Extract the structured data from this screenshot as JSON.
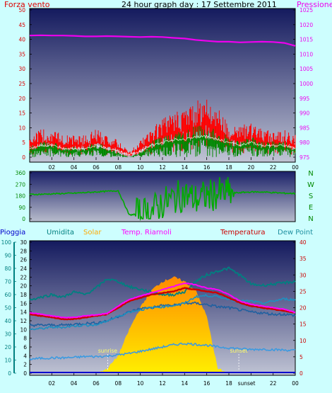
{
  "header": {
    "left": "Forza vento",
    "center": "24 hour graph day : 17 Settembre 2011",
    "right": "Pressione"
  },
  "colors": {
    "wind": "#ff0000",
    "gust": "#008800",
    "pressure": "#ee00ee",
    "direction": "#00aa00",
    "rain": "#007777",
    "humidity": "#008080",
    "solar": "#ffaa00",
    "riarnoli": "#ff00ff",
    "temperatura": "#cc0000",
    "dewpoint": "#1e90c0"
  },
  "legend": {
    "pioggia": "Pioggia",
    "umidita": "Umidita",
    "solar": "Solar",
    "riarnoli": "Temp. Riarnoli",
    "temperatura": "Temperatura",
    "dewpoint": "Dew Point"
  },
  "markers": {
    "sunrise": "sunrise",
    "sunset": "sunset"
  },
  "x_ticks": [
    "02",
    "04",
    "06",
    "08",
    "10",
    "12",
    "14",
    "16",
    "18",
    "20",
    "22",
    "00"
  ],
  "x_ticks_bottom": [
    "02",
    "04",
    "06",
    "08",
    "10",
    "12",
    "14",
    "16",
    "18",
    "sunset",
    "22",
    "00"
  ],
  "chart_data": [
    {
      "type": "line",
      "panel": "wind-pressure",
      "left_axis": {
        "range": [
          0,
          50
        ],
        "ticks": [
          0,
          5,
          10,
          15,
          20,
          25,
          30,
          35,
          40,
          45,
          50
        ]
      },
      "right_axis": {
        "range": [
          975,
          1025
        ],
        "ticks": [
          975,
          980,
          985,
          990,
          995,
          1000,
          1005,
          1010,
          1015,
          1020,
          1025
        ]
      },
      "x": [
        0,
        1,
        2,
        3,
        4,
        5,
        6,
        7,
        8,
        9,
        10,
        11,
        12,
        13,
        14,
        15,
        16,
        17,
        18,
        19,
        20,
        21,
        22,
        23,
        24
      ],
      "series": [
        {
          "name": "Pressione",
          "axis": "right",
          "values": [
            1016.3,
            1016.4,
            1016.3,
            1016.3,
            1016.2,
            1016.0,
            1016.0,
            1016.1,
            1016.0,
            1015.9,
            1015.8,
            1015.9,
            1015.8,
            1015.5,
            1015.3,
            1014.8,
            1014.5,
            1014.2,
            1014.2,
            1014.0,
            1014.1,
            1014.2,
            1014.1,
            1013.8,
            1012.8
          ]
        },
        {
          "name": "Forza vento",
          "axis": "left",
          "values": [
            4,
            5,
            5,
            4,
            4,
            4,
            5,
            4,
            3,
            1,
            3,
            5,
            7,
            8,
            9,
            10,
            11,
            9,
            6,
            6,
            6,
            5,
            5,
            5,
            4
          ]
        },
        {
          "axis": "left",
          "values": [
            2,
            3,
            3,
            2,
            2,
            2,
            3,
            2,
            1,
            0,
            1,
            3,
            4,
            5,
            5,
            6,
            6,
            5,
            4,
            3,
            4,
            3,
            3,
            3,
            2
          ]
        }
      ]
    },
    {
      "type": "line",
      "panel": "wind-direction",
      "left_axis": {
        "range": [
          0,
          360
        ],
        "ticks": [
          0,
          90,
          180,
          270,
          360
        ]
      },
      "right_labels": [
        "N",
        "W",
        "S",
        "E",
        "N"
      ],
      "x": [
        0,
        1,
        2,
        3,
        4,
        5,
        6,
        7,
        8,
        9,
        10,
        11,
        12,
        13,
        14,
        15,
        16,
        17,
        18,
        19,
        20,
        21,
        22,
        23,
        24
      ],
      "series": [
        {
          "name": "direction",
          "values": [
            190,
            192,
            195,
            198,
            200,
            205,
            210,
            215,
            220,
            30,
            40,
            60,
            120,
            160,
            190,
            150,
            180,
            195,
            200,
            205,
            210,
            210,
            205,
            200,
            198
          ]
        }
      ]
    },
    {
      "type": "area",
      "panel": "weather",
      "left_axis_outer": {
        "ticks": [
          0,
          10,
          20,
          30,
          40,
          50,
          60,
          70,
          80,
          90,
          100
        ]
      },
      "left_axis_inner": {
        "ticks": [
          0,
          2,
          4,
          6,
          8,
          10,
          12,
          14,
          16,
          18,
          20,
          22,
          24,
          26,
          28,
          30
        ]
      },
      "right_axis": {
        "ticks": [
          0,
          5,
          10,
          15,
          20,
          25,
          30,
          35,
          40
        ]
      },
      "x": [
        0,
        1,
        2,
        3,
        4,
        5,
        6,
        7,
        8,
        9,
        10,
        11,
        12,
        13,
        14,
        15,
        16,
        17,
        18,
        19,
        20,
        21,
        22,
        23,
        24
      ],
      "series": [
        {
          "name": "Solar",
          "values": [
            0,
            0,
            0,
            0,
            0,
            0,
            0,
            1,
            4,
            10,
            15,
            19,
            21,
            22,
            21,
            19,
            13,
            1,
            0,
            0,
            0,
            0,
            0,
            0,
            0
          ]
        },
        {
          "name": "Temperatura",
          "values": [
            18,
            17.5,
            17,
            16.5,
            16.5,
            17,
            17.5,
            18,
            20,
            22,
            23,
            24,
            24.5,
            25,
            26,
            25.5,
            25,
            24.5,
            23,
            21.5,
            20.5,
            20,
            19.5,
            19,
            18.5
          ]
        },
        {
          "name": "Temp. Riarnoli",
          "values": [
            18.5,
            18,
            17.5,
            17,
            17,
            17.5,
            17.8,
            18.2,
            20.5,
            22.5,
            23.5,
            24.5,
            25.5,
            26.5,
            27.5,
            27,
            26,
            25.5,
            24,
            22,
            21,
            20.5,
            20,
            19.5,
            18.5
          ]
        },
        {
          "name": "Umidita",
          "values": [
            56,
            58,
            60,
            58,
            62,
            60,
            65,
            72,
            70,
            66,
            64,
            62,
            60,
            60,
            62,
            70,
            75,
            78,
            80,
            75,
            68,
            67,
            68,
            69,
            70
          ]
        },
        {
          "name": "Dew Point",
          "values": [
            10,
            10.2,
            10.5,
            10.5,
            10.8,
            11,
            11,
            12,
            13,
            14,
            14.5,
            15,
            15.2,
            15.5,
            16,
            17.5,
            17.8,
            17.5,
            17,
            16.5,
            16.5,
            16,
            16.5,
            17,
            16.8
          ]
        },
        {
          "values": [
            11,
            11,
            11,
            11,
            11.2,
            11.4,
            11.5,
            12,
            13,
            14,
            14.8,
            15,
            15.5,
            15.5,
            16,
            16,
            15.7,
            15.2,
            15,
            14.5,
            14,
            13.8,
            13.5,
            13.5,
            13.2
          ]
        },
        {
          "values": [
            3.2,
            3.4,
            3.5,
            3.5,
            3.6,
            3.8,
            3.8,
            3.9,
            4.2,
            4.5,
            5,
            5.5,
            6,
            6.5,
            6.8,
            6.6,
            6.4,
            6,
            5.8,
            5.6,
            5.4,
            5.5,
            5.4,
            5.3,
            5.2
          ]
        },
        {
          "name": "Pioggia",
          "values": [
            0,
            0,
            0,
            0,
            0,
            0,
            0,
            0,
            0,
            0,
            0,
            0,
            0,
            0,
            0,
            0,
            0,
            0,
            0,
            0,
            0,
            0,
            0,
            0,
            0
          ]
        }
      ]
    }
  ]
}
